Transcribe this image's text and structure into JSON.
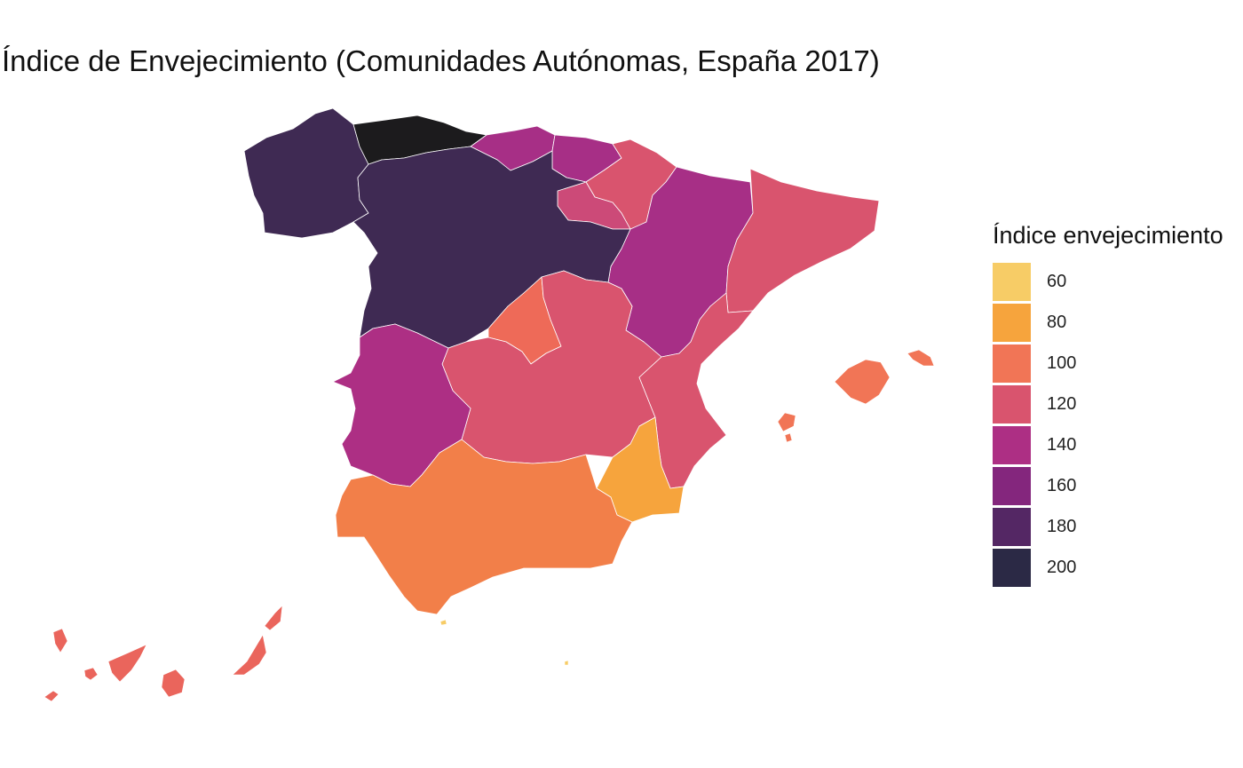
{
  "title": "Índice de Envejecimiento (Comunidades Autónomas, España  2017)",
  "legend": {
    "title": "Índice envejecimiento",
    "items": [
      {
        "label": "60",
        "color": "#f7cc66"
      },
      {
        "label": "80",
        "color": "#f6a43d"
      },
      {
        "label": "100",
        "color": "#f17556"
      },
      {
        "label": "120",
        "color": "#d9546e"
      },
      {
        "label": "140",
        "color": "#ad2f84"
      },
      {
        "label": "160",
        "color": "#84267d"
      },
      {
        "label": "180",
        "color": "#542764"
      },
      {
        "label": "200",
        "color": "#2b2945"
      }
    ]
  },
  "regions": [
    {
      "name": "Galicia",
      "color": "#3f2a53"
    },
    {
      "name": "Asturias",
      "color": "#1c1b1d"
    },
    {
      "name": "Cantabria",
      "color": "#a72f86"
    },
    {
      "name": "País Vasco",
      "color": "#a72f86"
    },
    {
      "name": "Navarra",
      "color": "#d9546e"
    },
    {
      "name": "La Rioja",
      "color": "#cc4a78"
    },
    {
      "name": "Aragón",
      "color": "#a72f86"
    },
    {
      "name": "Cataluña",
      "color": "#d9546e"
    },
    {
      "name": "Castilla y León",
      "color": "#3f2a53"
    },
    {
      "name": "Madrid",
      "color": "#ee6a58"
    },
    {
      "name": "Castilla-La Mancha",
      "color": "#d9546e"
    },
    {
      "name": "Extremadura",
      "color": "#ad2f84"
    },
    {
      "name": "Comunidad Valenciana",
      "color": "#d9546e"
    },
    {
      "name": "Murcia",
      "color": "#f6a43d"
    },
    {
      "name": "Andalucía",
      "color": "#f27f49"
    },
    {
      "name": "Islas Baleares",
      "color": "#f17556"
    },
    {
      "name": "Canarias",
      "color": "#ea655c"
    },
    {
      "name": "Ceuta",
      "color": "#f7cc66"
    },
    {
      "name": "Melilla",
      "color": "#f7cc66"
    }
  ]
}
